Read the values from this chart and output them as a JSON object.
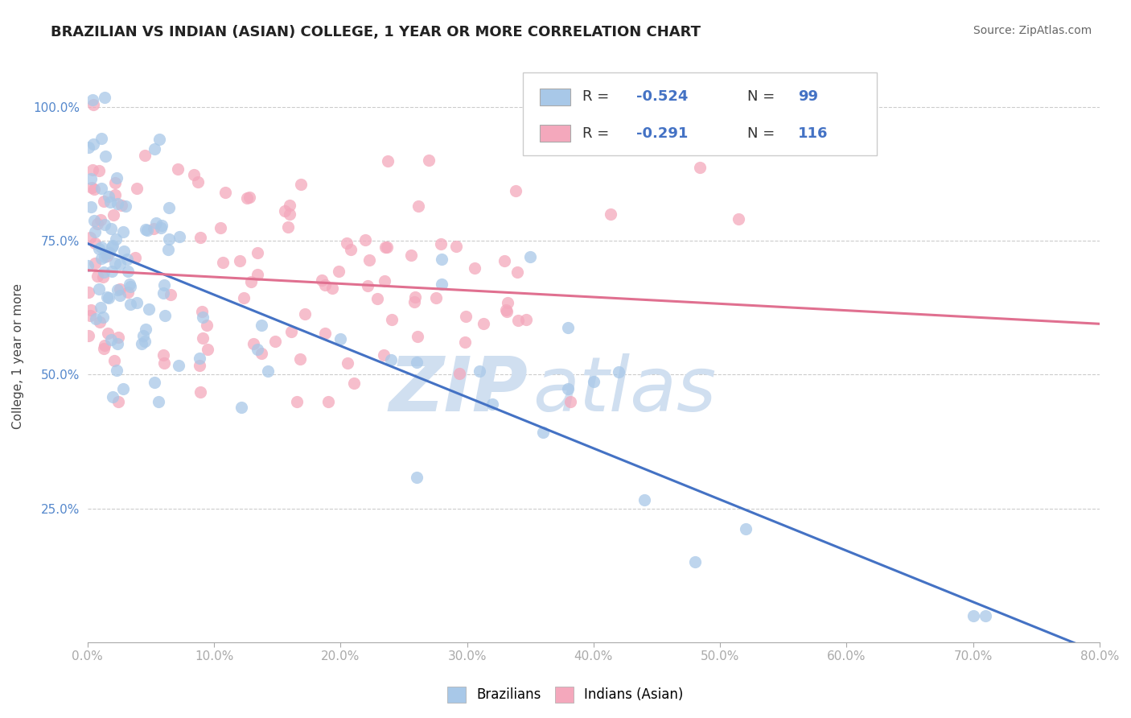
{
  "title": "BRAZILIAN VS INDIAN (ASIAN) COLLEGE, 1 YEAR OR MORE CORRELATION CHART",
  "source": "Source: ZipAtlas.com",
  "ylabel": "College, 1 year or more",
  "xmin": 0.0,
  "xmax": 0.8,
  "ymin": 0.0,
  "ymax": 1.07,
  "blue_R": -0.524,
  "blue_N": 99,
  "pink_R": -0.291,
  "pink_N": 116,
  "blue_color": "#a8c8e8",
  "pink_color": "#f4a8bc",
  "blue_line_color": "#4472c4",
  "pink_line_color": "#e07090",
  "background_color": "#ffffff",
  "grid_color": "#cccccc",
  "watermark_color": "#d0dff0",
  "legend_label1": "Brazilians",
  "legend_label2": "Indians (Asian)",
  "xtick_labels": [
    "0.0%",
    "10.0%",
    "20.0%",
    "30.0%",
    "40.0%",
    "50.0%",
    "60.0%",
    "70.0%",
    "80.0%"
  ],
  "xtick_vals": [
    0.0,
    0.1,
    0.2,
    0.3,
    0.4,
    0.5,
    0.6,
    0.7,
    0.8
  ],
  "ytick_labels": [
    "25.0%",
    "50.0%",
    "75.0%",
    "100.0%"
  ],
  "ytick_vals": [
    0.25,
    0.5,
    0.75,
    1.0
  ],
  "blue_line_x0": 0.0,
  "blue_line_y0": 0.745,
  "blue_line_x1": 0.8,
  "blue_line_y1": -0.02,
  "pink_line_x0": 0.0,
  "pink_line_y0": 0.695,
  "pink_line_x1": 0.8,
  "pink_line_y1": 0.595
}
